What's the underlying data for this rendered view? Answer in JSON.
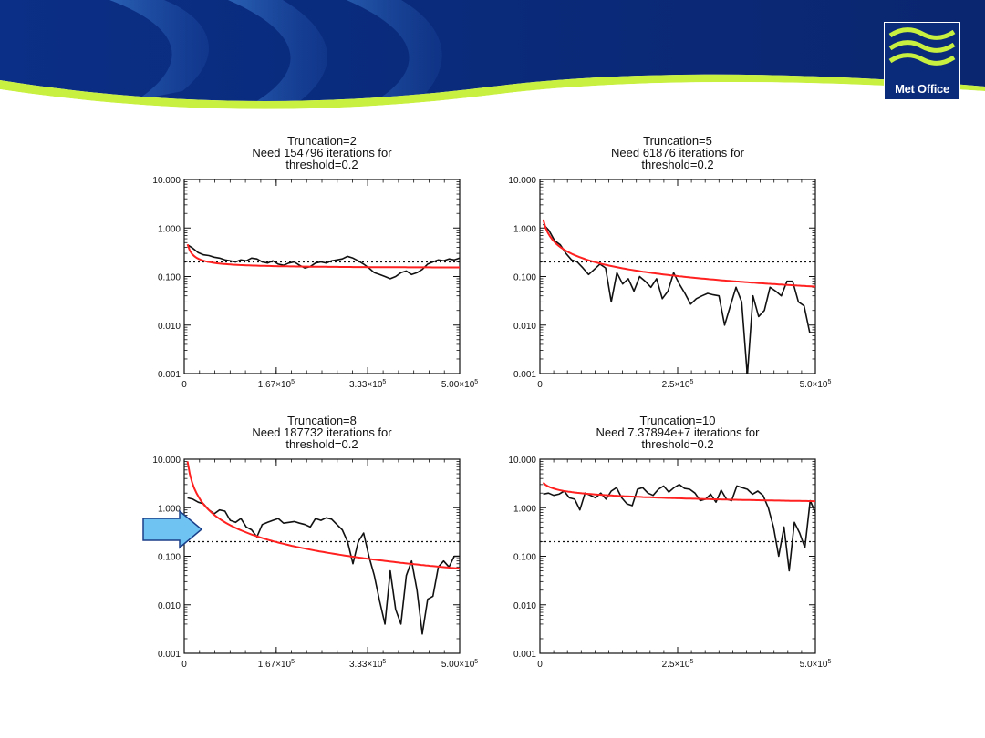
{
  "header": {
    "logo_text": "Met Office",
    "colors": {
      "banner_dark": "#0a2a7a",
      "banner_light": "#2b6ab8",
      "accent_green": "#c8f040"
    }
  },
  "arrow": {
    "icon": "right-arrow-icon",
    "color": "#6fc3f2"
  },
  "charts_common": {
    "threshold": 0.2,
    "ylim": [
      0.001,
      10
    ],
    "y_scale": "log",
    "y_tick_labels": [
      "10.000",
      "1.000",
      "0.100",
      "0.010",
      "0.001"
    ],
    "colors": {
      "raw": "#111111",
      "fit": "#ff2020",
      "threshold": "#111111"
    }
  },
  "chart_data": [
    {
      "type": "line",
      "title": "Truncation=2",
      "subtitle": "Need 154796 iterations for",
      "subtitle2": "threshold=0.2",
      "xlim": [
        0,
        500000
      ],
      "x_ticks": [
        {
          "label": "0",
          "sup": "",
          "tail": "",
          "value": 0
        },
        {
          "label": "1.67×10",
          "sup": "5",
          "tail": "",
          "value": 167000
        },
        {
          "label": "3.33×10",
          "sup": "5",
          "tail": "",
          "value": 333000
        },
        {
          "label": "5.00×10",
          "sup": "5",
          "tail": "",
          "value": 500000
        }
      ],
      "series": [
        {
          "kind": "raw",
          "x_max": 500000,
          "values": [
            0.45,
            0.38,
            0.31,
            0.28,
            0.27,
            0.25,
            0.24,
            0.22,
            0.21,
            0.2,
            0.22,
            0.21,
            0.24,
            0.23,
            0.2,
            0.19,
            0.21,
            0.18,
            0.17,
            0.19,
            0.2,
            0.17,
            0.15,
            0.16,
            0.19,
            0.2,
            0.19,
            0.21,
            0.22,
            0.23,
            0.26,
            0.24,
            0.21,
            0.18,
            0.15,
            0.12,
            0.11,
            0.1,
            0.09,
            0.1,
            0.12,
            0.13,
            0.11,
            0.12,
            0.14,
            0.18,
            0.2,
            0.22,
            0.21,
            0.23,
            0.22,
            0.24
          ]
        },
        {
          "kind": "fit",
          "a": 0.148,
          "b": 0.46,
          "p": 0.9
        }
      ]
    },
    {
      "type": "line",
      "title": "Truncation=5",
      "subtitle": "Need 61876 iterations for",
      "subtitle2": "threshold=0.2",
      "xlim": [
        0,
        500000
      ],
      "x_ticks": [
        {
          "label": "0",
          "sup": "",
          "tail": "",
          "value": 0
        },
        {
          "label": "2.5×10",
          "sup": "5",
          "tail": "",
          "value": 250000
        },
        {
          "label": "5.0×10",
          "sup": "5",
          "tail": "",
          "value": 500000
        }
      ],
      "series": [
        {
          "kind": "raw",
          "x_max": 500000,
          "values": [
            1.2,
            0.9,
            0.55,
            0.45,
            0.3,
            0.22,
            0.2,
            0.15,
            0.11,
            0.14,
            0.18,
            0.15,
            0.03,
            0.12,
            0.07,
            0.09,
            0.05,
            0.1,
            0.08,
            0.06,
            0.09,
            0.035,
            0.05,
            0.12,
            0.07,
            0.045,
            0.027,
            0.035,
            0.04,
            0.045,
            0.042,
            0.04,
            0.01,
            0.025,
            0.06,
            0.03,
            0.0009,
            0.04,
            0.015,
            0.02,
            0.06,
            0.05,
            0.04,
            0.08,
            0.08,
            0.03,
            0.025,
            0.007,
            0.007
          ]
        },
        {
          "kind": "fit",
          "a": 0,
          "b": 1.5,
          "p": 0.72
        }
      ]
    },
    {
      "type": "line",
      "title": "Truncation=8",
      "subtitle": "Need 187732 iterations for",
      "subtitle2": "threshold=0.2",
      "xlim": [
        0,
        500000
      ],
      "x_ticks": [
        {
          "label": "0",
          "sup": "",
          "tail": "",
          "value": 0
        },
        {
          "label": "1.67×10",
          "sup": "5",
          "tail": "",
          "value": 167000
        },
        {
          "label": "3.33×10",
          "sup": "5",
          "tail": "",
          "value": 333000
        },
        {
          "label": "5.00×10",
          "sup": "5",
          "tail": "",
          "value": 500000
        }
      ],
      "series": [
        {
          "kind": "raw",
          "x_max": 500000,
          "values": [
            1.6,
            1.5,
            1.3,
            1.2,
            0.9,
            0.75,
            0.9,
            0.85,
            0.55,
            0.5,
            0.6,
            0.4,
            0.35,
            0.25,
            0.45,
            0.5,
            0.55,
            0.6,
            0.48,
            0.5,
            0.52,
            0.48,
            0.45,
            0.4,
            0.6,
            0.55,
            0.62,
            0.58,
            0.45,
            0.35,
            0.2,
            0.07,
            0.2,
            0.3,
            0.1,
            0.04,
            0.012,
            0.004,
            0.05,
            0.008,
            0.004,
            0.04,
            0.08,
            0.02,
            0.0025,
            0.013,
            0.015,
            0.06,
            0.08,
            0.06,
            0.1,
            0.1
          ]
        },
        {
          "kind": "fit",
          "a": 0,
          "b": 9,
          "p": 1.15
        }
      ]
    },
    {
      "type": "line",
      "title": "Truncation=10",
      "subtitle": "Need 7.37894e+7 iterations for",
      "subtitle2": "threshold=0.2",
      "xlim": [
        0,
        500000
      ],
      "x_ticks": [
        {
          "label": "0",
          "sup": "",
          "tail": "",
          "value": 0
        },
        {
          "label": "2.5×10",
          "sup": "5",
          "tail": "",
          "value": 250000
        },
        {
          "label": "5.0×10",
          "sup": "5",
          "tail": "",
          "value": 500000
        }
      ],
      "series": [
        {
          "kind": "raw",
          "x_max": 500000,
          "values": [
            1.9,
            2.0,
            1.8,
            1.9,
            2.2,
            1.6,
            1.5,
            0.9,
            2.0,
            1.8,
            1.6,
            2.0,
            1.5,
            2.2,
            2.6,
            1.6,
            1.2,
            1.1,
            2.4,
            2.6,
            2.0,
            1.8,
            2.4,
            2.8,
            2.1,
            2.6,
            3.0,
            2.5,
            2.4,
            2.0,
            1.4,
            1.5,
            1.9,
            1.3,
            2.3,
            1.5,
            1.4,
            2.8,
            2.6,
            2.4,
            1.9,
            2.2,
            1.8,
            1.0,
            0.4,
            0.1,
            0.4,
            0.05,
            0.5,
            0.3,
            0.15,
            1.4,
            0.8
          ]
        },
        {
          "kind": "fit",
          "a": 0,
          "b": 3.3,
          "p": 0.2
        }
      ]
    }
  ]
}
